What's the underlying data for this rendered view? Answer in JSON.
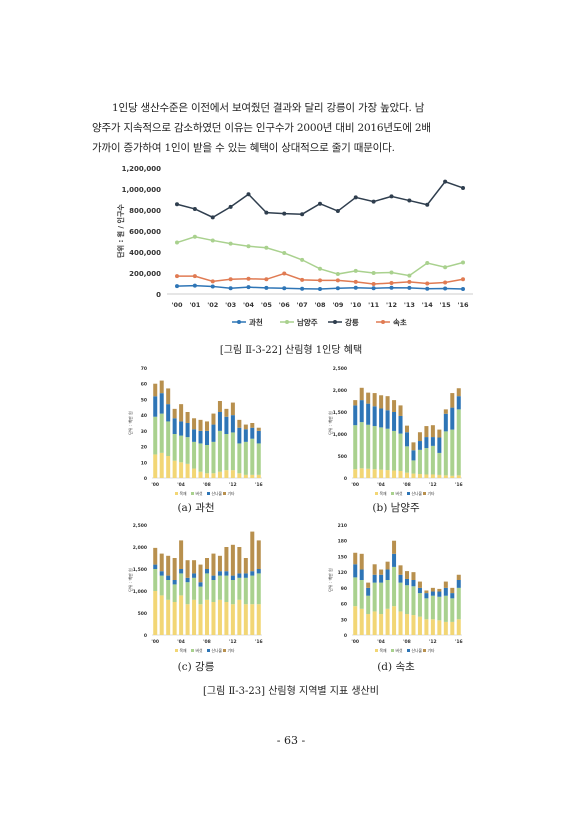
{
  "paragraph": {
    "line1": "1인당 생산수준은 이전에서 보여줬던 결과와 달리 강릉이 가장 높았다. 남",
    "line2": "양주가 지속적으로 감소하였던 이유는 인구수가 2000년 대비 2016년도에 2배",
    "line3": "가까이 증가하여 1인이 받을 수 있는 혜택이 상대적으로 줄기 때문이다."
  },
  "figure1_caption": "[그림 Ⅱ-3-22] 산림형 1인당 혜택",
  "figure2_caption": "[그림 Ⅱ-3-23] 산림형 지역별 지표 생산비",
  "page_number": "- 63 -",
  "colors": {
    "gwacheon": "#2e75b6",
    "namyangju": "#a9d18e",
    "gangneung": "#2f3e4e",
    "sokcho": "#e07b53",
    "stack": [
      "#f2d675",
      "#a9d18e",
      "#2e75b6",
      "#b8904e"
    ]
  },
  "chart_data": [
    {
      "type": "line",
      "title": "",
      "ylabel": "단위 : 원 / 인구수",
      "xlabel": "",
      "ylim": [
        0,
        1200000
      ],
      "yticks": [
        "0",
        "200,000",
        "400,000",
        "600,000",
        "800,000",
        "1,000,000",
        "1,200,000"
      ],
      "x": [
        "'00",
        "'01",
        "'02",
        "'03",
        "'04",
        "'05",
        "'06",
        "'07",
        "'08",
        "'09",
        "'10",
        "'11",
        "'12",
        "'13",
        "'14",
        "'15",
        "'16"
      ],
      "legend_position": "bottom",
      "series": [
        {
          "name": "과천",
          "color": "#2e75b6",
          "values": [
            75000,
            80000,
            72000,
            55000,
            65000,
            58000,
            55000,
            50000,
            48000,
            55000,
            60000,
            55000,
            60000,
            58000,
            50000,
            52000,
            48000
          ]
        },
        {
          "name": "남양주",
          "color": "#a9d18e",
          "values": [
            490000,
            545000,
            510000,
            480000,
            455000,
            440000,
            390000,
            325000,
            240000,
            190000,
            220000,
            200000,
            205000,
            175000,
            295000,
            255000,
            300000
          ]
        },
        {
          "name": "강릉",
          "color": "#2f3e4e",
          "values": [
            855000,
            810000,
            730000,
            830000,
            950000,
            775000,
            765000,
            760000,
            860000,
            790000,
            920000,
            880000,
            930000,
            890000,
            850000,
            1070000,
            1010000
          ]
        },
        {
          "name": "속초",
          "color": "#e07b53",
          "values": [
            170000,
            170000,
            120000,
            140000,
            145000,
            140000,
            195000,
            135000,
            130000,
            130000,
            115000,
            95000,
            105000,
            115000,
            100000,
            110000,
            140000
          ]
        }
      ]
    },
    {
      "type": "bar",
      "stacked": true,
      "label": "(a) 과천",
      "ylabel": "단위 : 백만 원",
      "ylim": [
        0,
        70
      ],
      "yticks": [
        "0",
        "10",
        "20",
        "30",
        "40",
        "50",
        "60",
        "70"
      ],
      "xticks": [
        "'00",
        "'04",
        "'08",
        "'12",
        "'16"
      ],
      "legend": [
        "목재",
        "버섯",
        "산나물",
        "기타"
      ],
      "series": [
        {
          "name": "목재",
          "values": [
            15,
            16,
            14,
            11,
            10,
            9,
            6,
            4,
            3,
            3,
            4,
            5,
            5,
            3,
            2,
            2,
            2
          ]
        },
        {
          "name": "버섯",
          "values": [
            24,
            25,
            22,
            17,
            17,
            17,
            17,
            18,
            18,
            20,
            26,
            23,
            24,
            19,
            21,
            23,
            20
          ]
        },
        {
          "name": "산나물",
          "values": [
            13,
            13,
            11,
            10,
            9,
            9,
            8,
            8,
            9,
            11,
            12,
            11,
            11,
            10,
            8,
            7,
            8
          ]
        },
        {
          "name": "기타",
          "values": [
            8,
            8,
            10,
            6,
            11,
            7,
            7,
            7,
            6,
            7,
            7,
            5,
            8,
            5,
            3,
            3,
            2
          ]
        }
      ]
    },
    {
      "type": "bar",
      "stacked": true,
      "label": "(b) 남양주",
      "ylabel": "단위 : 백만 원",
      "ylim": [
        0,
        2500
      ],
      "yticks": [
        "0",
        "500",
        "1,000",
        "1,500",
        "2,000",
        "2,500"
      ],
      "xticks": [
        "'00",
        "'04",
        "'08",
        "'12",
        "'16"
      ],
      "legend": [
        "목재",
        "버섯",
        "산나물",
        "기타"
      ],
      "series": [
        {
          "name": "목재",
          "values": [
            200,
            220,
            210,
            200,
            190,
            180,
            170,
            160,
            120,
            100,
            90,
            80,
            80,
            70,
            60,
            50,
            60
          ]
        },
        {
          "name": "버섯",
          "values": [
            1000,
            1050,
            1000,
            980,
            960,
            940,
            900,
            850,
            600,
            300,
            550,
            600,
            650,
            500,
            1000,
            1050,
            1500
          ]
        },
        {
          "name": "산나물",
          "values": [
            450,
            500,
            480,
            450,
            430,
            420,
            430,
            400,
            320,
            230,
            200,
            250,
            200,
            350,
            400,
            500,
            300
          ]
        },
        {
          "name": "기타",
          "values": [
            120,
            280,
            250,
            300,
            300,
            320,
            270,
            240,
            150,
            180,
            200,
            250,
            270,
            180,
            100,
            330,
            180
          ]
        }
      ]
    },
    {
      "type": "bar",
      "stacked": true,
      "label": "(c) 강릉",
      "ylabel": "단위 : 백만 원",
      "ylim": [
        0,
        2500
      ],
      "yticks": [
        "0",
        "500",
        "1,000",
        "1,500",
        "2,000",
        "2,500"
      ],
      "xticks": [
        "'00",
        "'04",
        "'08",
        "'12",
        "'16"
      ],
      "legend": [
        "목재",
        "버섯",
        "산나물",
        "기타"
      ],
      "series": [
        {
          "name": "목재",
          "values": [
            1000,
            900,
            800,
            750,
            900,
            700,
            800,
            700,
            800,
            750,
            800,
            750,
            700,
            800,
            700,
            700,
            700
          ]
        },
        {
          "name": "버섯",
          "values": [
            500,
            450,
            450,
            400,
            500,
            500,
            500,
            400,
            600,
            500,
            550,
            600,
            550,
            500,
            600,
            650,
            700
          ]
        },
        {
          "name": "산나물",
          "values": [
            100,
            100,
            100,
            100,
            100,
            100,
            100,
            100,
            100,
            100,
            100,
            100,
            100,
            100,
            100,
            100,
            100
          ]
        },
        {
          "name": "기타",
          "values": [
            380,
            400,
            450,
            500,
            650,
            400,
            300,
            400,
            250,
            500,
            350,
            550,
            700,
            600,
            350,
            900,
            650
          ]
        }
      ]
    },
    {
      "type": "bar",
      "stacked": true,
      "label": "(d) 속초",
      "ylabel": "단위 : 백만 원",
      "ylim": [
        0,
        210
      ],
      "yticks": [
        "0",
        "30",
        "60",
        "90",
        "120",
        "150",
        "180",
        "210"
      ],
      "xticks": [
        "'00",
        "'04",
        "'08",
        "'12",
        "'16"
      ],
      "legend": [
        "목재",
        "버섯",
        "산나물",
        "기타"
      ],
      "series": [
        {
          "name": "목재",
          "values": [
            55,
            50,
            40,
            45,
            40,
            50,
            55,
            45,
            40,
            38,
            35,
            30,
            30,
            28,
            25,
            25,
            30
          ]
        },
        {
          "name": "버섯",
          "values": [
            55,
            55,
            35,
            55,
            60,
            55,
            75,
            55,
            55,
            55,
            45,
            40,
            45,
            45,
            50,
            45,
            60
          ]
        },
        {
          "name": "산나물",
          "values": [
            25,
            20,
            15,
            15,
            15,
            20,
            25,
            15,
            12,
            12,
            10,
            10,
            8,
            10,
            15,
            10,
            15
          ]
        },
        {
          "name": "기타",
          "values": [
            22,
            30,
            10,
            20,
            10,
            15,
            25,
            18,
            15,
            15,
            12,
            5,
            7,
            5,
            12,
            10,
            10
          ]
        }
      ]
    }
  ]
}
